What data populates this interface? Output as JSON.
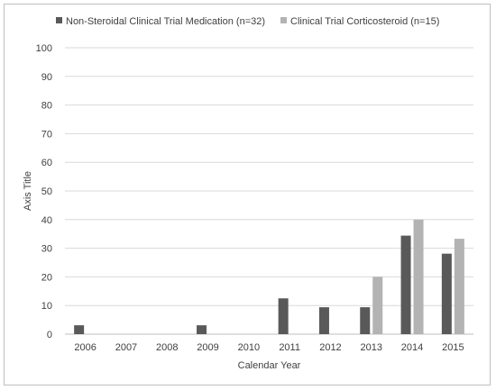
{
  "chart_data": {
    "type": "bar",
    "title": "",
    "xlabel": "Calendar Year",
    "ylabel": "Axis Title",
    "ylim": [
      0,
      100
    ],
    "yticks": [
      0,
      10,
      20,
      30,
      40,
      50,
      60,
      70,
      80,
      90,
      100
    ],
    "grid": true,
    "legend_position": "top",
    "categories": [
      "2006",
      "2007",
      "2008",
      "2009",
      "2010",
      "2011",
      "2012",
      "2013",
      "2014",
      "2015"
    ],
    "series": [
      {
        "name": "Non-Steroidal Clinical Trial Medication (n=32)",
        "color": "#595959",
        "values": [
          3.1,
          0,
          0,
          3.1,
          0,
          12.5,
          9.4,
          9.4,
          34.4,
          28.1
        ]
      },
      {
        "name": "Clinical Trial Corticosteroid (n=15)",
        "color": "#b3b3b3",
        "values": [
          0,
          0,
          0,
          0,
          0,
          0,
          0,
          20.0,
          40.0,
          33.3
        ]
      }
    ]
  }
}
